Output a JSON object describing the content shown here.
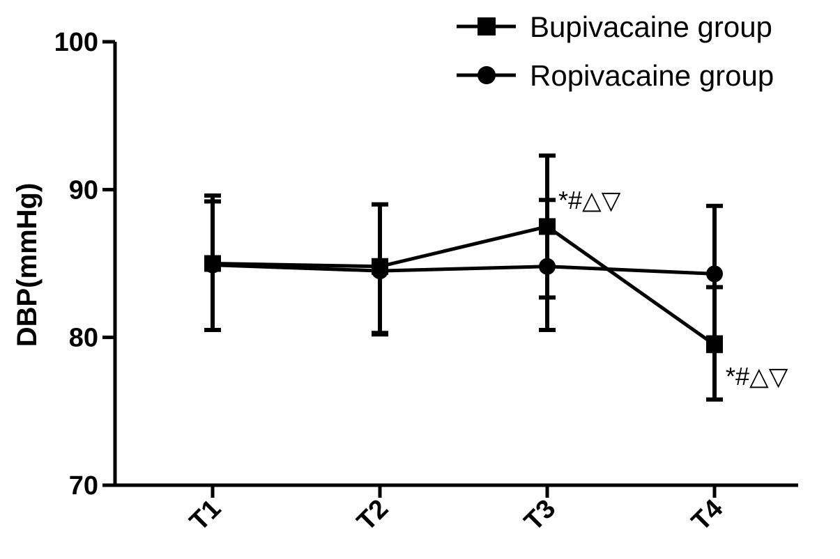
{
  "chart_data": {
    "type": "line",
    "title": "",
    "xlabel": "",
    "ylabel": "DBP(mmHg)",
    "categories": [
      "T1",
      "T2",
      "T3",
      "T4"
    ],
    "ylim": [
      70,
      100
    ],
    "yticks": [
      70,
      80,
      90,
      100
    ],
    "grid": false,
    "legend_position": "top-right",
    "colors": {
      "line": "#000000",
      "background": "#ffffff"
    },
    "series": [
      {
        "name": "Bupivacaine group",
        "marker": "square",
        "values": [
          85.0,
          84.8,
          87.5,
          79.5
        ],
        "error_upper": [
          89.6,
          89.0,
          92.3,
          83.4
        ],
        "error_lower": [
          80.5,
          80.3,
          82.7,
          75.8
        ]
      },
      {
        "name": "Ropivacaine group",
        "marker": "circle",
        "values": [
          84.9,
          84.5,
          84.8,
          84.3
        ],
        "error_upper": [
          89.2,
          89.0,
          89.3,
          88.9
        ],
        "error_lower": [
          80.5,
          80.2,
          80.5,
          80.0
        ]
      }
    ],
    "annotations": [
      {
        "text": "*#△▽",
        "category": "T3",
        "y": 89.3
      },
      {
        "text": "*#△▽",
        "category": "T4",
        "y": 77.4
      }
    ]
  }
}
